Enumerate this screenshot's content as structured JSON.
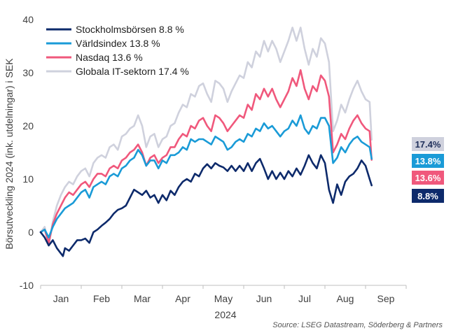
{
  "chart_data": {
    "type": "line",
    "ylabel": "Börsutveckling 2024 (ink. utdelningar) i SEK",
    "xlabel": "2024",
    "ylim": [
      -10,
      40
    ],
    "yticks": [
      -10,
      0,
      10,
      20,
      30,
      40
    ],
    "x_tick_labels": [
      "Jan",
      "Feb",
      "Mar",
      "Apr",
      "May",
      "Jun",
      "Jul",
      "Aug",
      "Sep"
    ],
    "x_domain_months": [
      0,
      9
    ],
    "x_last": 8.15,
    "grid": false,
    "legend_placement": "top-left",
    "series": [
      {
        "name": "Stockholmsbörsen 8.8 %",
        "end_label": "8.8%",
        "color": "#0d2a6b",
        "x": [
          0,
          0.1,
          0.2,
          0.3,
          0.4,
          0.5,
          0.55,
          0.6,
          0.7,
          0.8,
          0.9,
          1.0,
          1.1,
          1.2,
          1.3,
          1.4,
          1.5,
          1.6,
          1.7,
          1.8,
          1.9,
          2.0,
          2.1,
          2.2,
          2.3,
          2.4,
          2.5,
          2.6,
          2.7,
          2.8,
          2.9,
          3.0,
          3.1,
          3.2,
          3.3,
          3.4,
          3.5,
          3.6,
          3.7,
          3.8,
          3.9,
          4.0,
          4.1,
          4.2,
          4.3,
          4.4,
          4.5,
          4.6,
          4.7,
          4.8,
          4.9,
          5.0,
          5.1,
          5.2,
          5.3,
          5.4,
          5.5,
          5.6,
          5.7,
          5.8,
          5.9,
          6.0,
          6.1,
          6.2,
          6.3,
          6.4,
          6.5,
          6.6,
          6.7,
          6.8,
          6.9,
          7.0,
          7.1,
          7.2,
          7.3,
          7.4,
          7.5,
          7.6,
          7.7,
          7.8,
          7.9,
          8.0,
          8.1,
          8.15
        ],
        "values": [
          0,
          -1,
          -2.5,
          -1.5,
          -3,
          -4,
          -4.5,
          -3,
          -3.5,
          -2.5,
          -1.5,
          -1.5,
          -1.2,
          -2,
          0,
          0.5,
          1.2,
          1.8,
          2.5,
          3.5,
          4.2,
          4.5,
          5,
          6.5,
          8,
          7.5,
          7,
          7.8,
          6.5,
          7,
          5.5,
          7,
          6,
          7.8,
          7,
          8.5,
          9.5,
          10,
          9.5,
          11,
          10.5,
          12,
          12.8,
          12,
          13,
          12.5,
          12.2,
          11.5,
          12.5,
          11.5,
          12.5,
          11.5,
          13,
          11.5,
          13,
          13.8,
          12,
          10,
          11.5,
          10,
          11.2,
          10,
          11.5,
          10.5,
          12,
          10.8,
          12.5,
          14.5,
          13,
          12,
          14.5,
          13,
          8,
          5.5,
          9,
          7,
          9.5,
          10.5,
          11,
          12,
          13.5,
          12.5,
          10,
          8.8
        ]
      },
      {
        "name": "Världsindex 13.8 %",
        "end_label": "13.8%",
        "color": "#1a9bd7",
        "x": [
          0,
          0.1,
          0.2,
          0.3,
          0.4,
          0.5,
          0.6,
          0.7,
          0.8,
          0.9,
          1.0,
          1.1,
          1.2,
          1.3,
          1.4,
          1.5,
          1.6,
          1.7,
          1.8,
          1.9,
          2.0,
          2.1,
          2.2,
          2.3,
          2.4,
          2.5,
          2.6,
          2.7,
          2.8,
          2.9,
          3.0,
          3.1,
          3.2,
          3.3,
          3.4,
          3.5,
          3.6,
          3.7,
          3.8,
          3.9,
          4.0,
          4.1,
          4.2,
          4.3,
          4.4,
          4.5,
          4.6,
          4.7,
          4.8,
          4.9,
          5.0,
          5.1,
          5.2,
          5.3,
          5.4,
          5.5,
          5.6,
          5.7,
          5.8,
          5.9,
          6.0,
          6.1,
          6.2,
          6.3,
          6.4,
          6.5,
          6.6,
          6.7,
          6.8,
          6.9,
          7.0,
          7.1,
          7.2,
          7.3,
          7.4,
          7.5,
          7.6,
          7.7,
          7.8,
          7.9,
          8.0,
          8.1,
          8.15
        ],
        "values": [
          0,
          0.5,
          -1,
          1,
          2.5,
          3.5,
          4.5,
          5,
          5.5,
          6.5,
          7.5,
          8,
          6.5,
          8.5,
          9,
          9.5,
          9,
          10.5,
          11,
          10.5,
          12,
          12.5,
          13.5,
          14,
          15.5,
          14.5,
          12.5,
          13.5,
          13.5,
          12,
          13.5,
          13,
          14.5,
          14.5,
          15,
          16,
          15.5,
          17.5,
          17,
          17.5,
          17.5,
          17,
          16.5,
          18,
          17.5,
          17,
          15.5,
          16,
          17,
          17.5,
          17,
          18.5,
          18,
          19.5,
          19,
          20.5,
          19.5,
          20,
          19,
          18,
          19,
          19.5,
          21,
          20,
          22,
          19.5,
          18.5,
          20,
          19.5,
          21.5,
          21.5,
          20,
          13,
          14,
          16,
          15,
          16.5,
          17.5,
          18,
          17,
          16.5,
          16,
          13.8
        ]
      },
      {
        "name": "Nasdaq 13.6 %",
        "end_label": "13.6%",
        "color": "#f0587c",
        "x": [
          0,
          0.1,
          0.2,
          0.3,
          0.4,
          0.5,
          0.6,
          0.7,
          0.8,
          0.9,
          1.0,
          1.1,
          1.2,
          1.3,
          1.4,
          1.5,
          1.6,
          1.7,
          1.8,
          1.9,
          2.0,
          2.1,
          2.2,
          2.3,
          2.4,
          2.5,
          2.6,
          2.7,
          2.8,
          2.9,
          3.0,
          3.1,
          3.2,
          3.3,
          3.4,
          3.5,
          3.6,
          3.7,
          3.8,
          3.9,
          4.0,
          4.1,
          4.2,
          4.3,
          4.4,
          4.5,
          4.6,
          4.7,
          4.8,
          4.9,
          5.0,
          5.1,
          5.2,
          5.3,
          5.4,
          5.5,
          5.6,
          5.7,
          5.8,
          5.9,
          6.0,
          6.1,
          6.2,
          6.3,
          6.4,
          6.5,
          6.6,
          6.7,
          6.8,
          6.9,
          7.0,
          7.1,
          7.2,
          7.3,
          7.4,
          7.5,
          7.6,
          7.7,
          7.8,
          7.9,
          8.0,
          8.1,
          8.15
        ],
        "values": [
          0,
          0.5,
          -2,
          1.5,
          3.5,
          5,
          6.5,
          7.5,
          7,
          8,
          9,
          9.5,
          8.5,
          10,
          11,
          11,
          10.5,
          12,
          12.5,
          12,
          13.5,
          14,
          15,
          15.5,
          16.5,
          15,
          12.5,
          14,
          14.5,
          13,
          14,
          14.5,
          16,
          16,
          17.5,
          18.5,
          18,
          20,
          19.5,
          21,
          21.5,
          20,
          19,
          22,
          21.5,
          20.5,
          19,
          20,
          21,
          22,
          21.5,
          24,
          23,
          26,
          25,
          27,
          25.5,
          27,
          25,
          23.5,
          25,
          26.5,
          29,
          27.5,
          30.5,
          27,
          25,
          27.5,
          26.5,
          29.5,
          28.5,
          25.5,
          15,
          16.5,
          18.5,
          17.5,
          19.5,
          21,
          22,
          20.5,
          19.5,
          19,
          13.6
        ]
      },
      {
        "name": "Globala IT-sektorn 17.4 %",
        "end_label": "17.4%",
        "color": "#cfd1dd",
        "x": [
          0,
          0.1,
          0.2,
          0.3,
          0.4,
          0.5,
          0.6,
          0.7,
          0.8,
          0.9,
          1.0,
          1.1,
          1.2,
          1.3,
          1.4,
          1.5,
          1.6,
          1.7,
          1.8,
          1.9,
          2.0,
          2.1,
          2.2,
          2.3,
          2.4,
          2.5,
          2.6,
          2.7,
          2.8,
          2.9,
          3.0,
          3.1,
          3.2,
          3.3,
          3.4,
          3.5,
          3.6,
          3.7,
          3.8,
          3.9,
          4.0,
          4.1,
          4.2,
          4.3,
          4.4,
          4.5,
          4.6,
          4.7,
          4.8,
          4.9,
          5.0,
          5.1,
          5.2,
          5.3,
          5.4,
          5.5,
          5.6,
          5.7,
          5.8,
          5.9,
          6.0,
          6.1,
          6.2,
          6.3,
          6.4,
          6.5,
          6.6,
          6.7,
          6.8,
          6.9,
          7.0,
          7.1,
          7.2,
          7.3,
          7.4,
          7.5,
          7.6,
          7.7,
          7.8,
          7.9,
          8.0,
          8.1,
          8.15
        ],
        "values": [
          0,
          1,
          -2.5,
          2,
          5,
          7,
          8.5,
          9.5,
          9,
          10.5,
          11.5,
          12,
          10.5,
          13,
          14,
          14.5,
          14,
          16,
          16.5,
          15.5,
          18,
          18.5,
          19.5,
          20,
          22,
          20,
          16,
          18,
          18.5,
          16,
          17.5,
          18,
          20,
          20.5,
          22.5,
          24,
          23.5,
          26,
          25.5,
          27.5,
          28,
          26,
          24.5,
          28.5,
          28,
          27,
          24.5,
          26.5,
          28,
          29.5,
          29,
          32,
          31,
          34,
          33,
          36,
          34,
          36,
          34.5,
          32,
          34,
          36,
          38.5,
          36,
          38.5,
          34.5,
          31.5,
          34.5,
          33,
          36.5,
          35.5,
          32,
          19,
          21,
          24,
          22.5,
          25,
          27,
          28.5,
          26.5,
          25,
          24.5,
          17.4
        ]
      }
    ]
  },
  "source": "Source: LSEG Datastream, Söderberg & Partners"
}
